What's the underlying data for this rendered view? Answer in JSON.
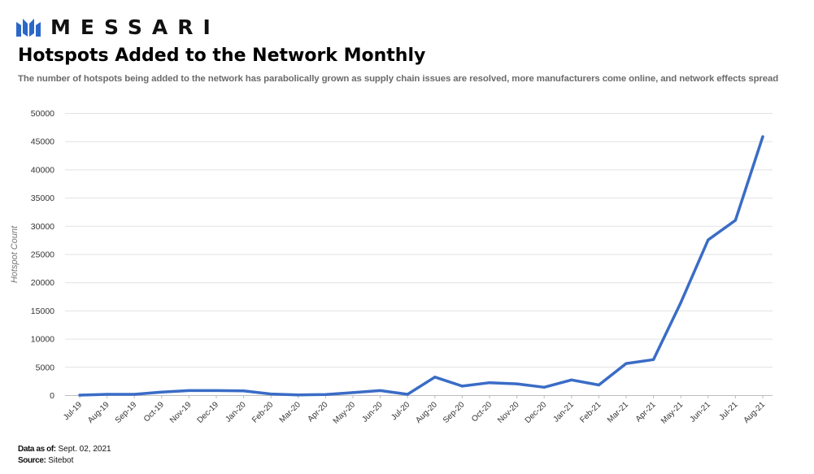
{
  "brand": {
    "name": "MESSARI",
    "logo_icon": "messari-logo-icon",
    "color": "#2b67c8"
  },
  "header": {
    "title": "Hotspots Added to the Network Monthly",
    "subtitle": "The number of hotspots being added to the network has parabolically grown as supply chain issues  are resolved, more manufacturers come online, and network effects spread"
  },
  "footer": {
    "data_as_of_label": "Data as of:",
    "data_as_of_value": " Sept. 02, 2021",
    "source_label": "Source:",
    "source_value": " Sitebot"
  },
  "chart_data": {
    "type": "line",
    "title": "",
    "xlabel": "",
    "ylabel": "Hotspot Count",
    "ylim": [
      0,
      50000
    ],
    "yticks": [
      0,
      5000,
      10000,
      15000,
      20000,
      25000,
      30000,
      35000,
      40000,
      45000,
      50000
    ],
    "grid": true,
    "line_color": "#3a6cc6",
    "categories": [
      "Jul-19",
      "Aug-19",
      "Sep-19",
      "Oct-19",
      "Nov-19",
      "Dec-19",
      "Jan-20",
      "Feb-20",
      "Mar-20",
      "Apr-20",
      "May-20",
      "Jun-20",
      "Jul-20",
      "Aug-20",
      "Sep-20",
      "Oct-20",
      "Nov-20",
      "Dec-20",
      "Jan-21",
      "Feb-21",
      "Mar-21",
      "Apr-21",
      "May-21",
      "Jun-21",
      "Jul-21",
      "Aug-21"
    ],
    "series": [
      {
        "values": [
          0,
          150,
          150,
          550,
          800,
          800,
          750,
          200,
          50,
          100,
          450,
          800,
          150,
          3200,
          1600,
          2200,
          2000,
          1400,
          2700,
          1800,
          5600,
          6300,
          16400,
          27500,
          31000,
          45800
        ]
      }
    ]
  }
}
